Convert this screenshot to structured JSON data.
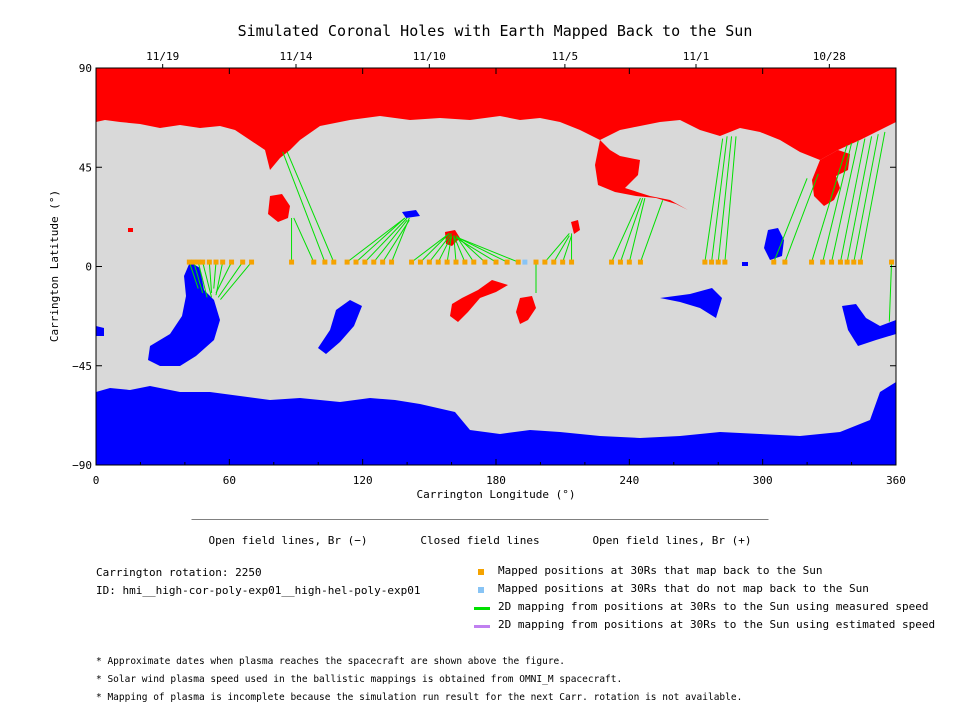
{
  "title": "Simulated Coronal Holes with Earth Mapped Back to the Sun",
  "map": {
    "x_label": "Carrington Longitude (°)",
    "y_label": "Carrington Latitude (°)",
    "x_ticks": [
      "0",
      "60",
      "120",
      "180",
      "240",
      "300",
      "360"
    ],
    "y_ticks": [
      "90",
      "45",
      "0",
      "−45",
      "−90"
    ],
    "x_range": [
      0,
      360
    ],
    "y_range": [
      -90,
      90
    ],
    "top_dates": [
      {
        "label": "11/19",
        "lon": 30
      },
      {
        "label": "11/14",
        "lon": 90
      },
      {
        "label": "11/10",
        "lon": 150
      },
      {
        "label": "11/5",
        "lon": 211
      },
      {
        "label": "11/1",
        "lon": 270
      },
      {
        "label": "10/28",
        "lon": 330
      }
    ],
    "colors": {
      "open_negative": "#0000ff",
      "closed": "#d9d9d9",
      "open_positive": "#ff0000",
      "mapped_yes": "#f5a300",
      "mapped_no": "#88c4f5",
      "measured_line": "#00e000",
      "estimated_line": "#c080f0"
    }
  },
  "colorbar": [
    {
      "label": "Open field lines, Br (−)",
      "color": "#0000ff"
    },
    {
      "label": "Closed field lines",
      "color": "#d9d9d9"
    },
    {
      "label": "Open field lines, Br (+)",
      "color": "#ff0000"
    }
  ],
  "info": {
    "rotation": "Carrington rotation: 2250",
    "id": "ID: hmi__high-cor-poly-exp01__high-hel-poly-exp01"
  },
  "legend": [
    {
      "label": "Mapped positions at 30Rs that map back to the Sun",
      "kind": "square",
      "color": "#f5a300"
    },
    {
      "label": "Mapped positions at 30Rs that do not map back to the Sun",
      "kind": "square",
      "color": "#88c4f5"
    },
    {
      "label": "2D mapping from positions at 30Rs to the Sun using measured speed",
      "kind": "line",
      "color": "#00e000"
    },
    {
      "label": "2D mapping from positions at 30Rs to the Sun using estimated speed",
      "kind": "line",
      "color": "#c080f0"
    }
  ],
  "notes": [
    "* Approximate dates when plasma reaches the spacecraft are shown above the figure.",
    "* Solar wind plasma speed used in the ballistic mappings is obtained from OMNI_M spacecraft.",
    "* Mapping of plasma is incomplete because the simulation run result for the next Carr. rotation is not available."
  ],
  "mapping_points": [
    {
      "lon": 42,
      "lat": 2,
      "flon": 46,
      "flat": -10,
      "maps": true
    },
    {
      "lon": 44,
      "lat": 2,
      "flon": 48,
      "flat": -12,
      "maps": true
    },
    {
      "lon": 46,
      "lat": 2,
      "flon": 50,
      "flat": -14,
      "maps": true
    },
    {
      "lon": 48,
      "lat": 2,
      "flon": 52,
      "flat": -14,
      "maps": true
    },
    {
      "lon": 51,
      "lat": 2,
      "flon": 52,
      "flat": -12,
      "maps": true
    },
    {
      "lon": 54,
      "lat": 2,
      "flon": 53,
      "flat": -10,
      "maps": true
    },
    {
      "lon": 57,
      "lat": 2,
      "flon": 54,
      "flat": -13,
      "maps": true
    },
    {
      "lon": 61,
      "lat": 2,
      "flon": 54,
      "flat": -12,
      "maps": true
    },
    {
      "lon": 66,
      "lat": 2,
      "flon": 55,
      "flat": -14,
      "maps": true
    },
    {
      "lon": 70,
      "lat": 2,
      "flon": 56,
      "flat": -15,
      "maps": true
    },
    {
      "lon": 88,
      "lat": 2,
      "flon": 88,
      "flat": 22,
      "maps": true
    },
    {
      "lon": 98,
      "lat": 2,
      "flon": 89,
      "flat": 22,
      "maps": true
    },
    {
      "lon": 103,
      "lat": 2,
      "flon": 84,
      "flat": 52,
      "maps": true
    },
    {
      "lon": 107,
      "lat": 2,
      "flon": 86,
      "flat": 52,
      "maps": true
    },
    {
      "lon": 113,
      "lat": 2,
      "flon": 139,
      "flat": 22,
      "maps": true
    },
    {
      "lon": 117,
      "lat": 2,
      "flon": 139,
      "flat": 22,
      "maps": true
    },
    {
      "lon": 121,
      "lat": 2,
      "flon": 140,
      "flat": 22,
      "maps": true
    },
    {
      "lon": 125,
      "lat": 2,
      "flon": 140,
      "flat": 21,
      "maps": true
    },
    {
      "lon": 129,
      "lat": 2,
      "flon": 141,
      "flat": 21,
      "maps": true
    },
    {
      "lon": 133,
      "lat": 2,
      "flon": 141,
      "flat": 22,
      "maps": true
    },
    {
      "lon": 142,
      "lat": 2,
      "flon": 159,
      "flat": 15,
      "maps": true
    },
    {
      "lon": 146,
      "lat": 2,
      "flon": 159,
      "flat": 15,
      "maps": true
    },
    {
      "lon": 150,
      "lat": 2,
      "flon": 160,
      "flat": 15,
      "maps": true
    },
    {
      "lon": 154,
      "lat": 2,
      "flon": 160,
      "flat": 14,
      "maps": true
    },
    {
      "lon": 158,
      "lat": 2,
      "flon": 160,
      "flat": 14,
      "maps": true
    },
    {
      "lon": 162,
      "lat": 2,
      "flon": 161,
      "flat": 14,
      "maps": true
    },
    {
      "lon": 166,
      "lat": 2,
      "flon": 161,
      "flat": 14,
      "maps": true
    },
    {
      "lon": 170,
      "lat": 2,
      "flon": 162,
      "flat": 14,
      "maps": true
    },
    {
      "lon": 175,
      "lat": 2,
      "flon": 162,
      "flat": 14,
      "maps": true
    },
    {
      "lon": 180,
      "lat": 2,
      "flon": 162,
      "flat": 13,
      "maps": true
    },
    {
      "lon": 185,
      "lat": 2,
      "flon": 163,
      "flat": 13,
      "maps": true
    },
    {
      "lon": 190,
      "lat": 2,
      "flon": 163,
      "flat": 13,
      "maps": true
    },
    {
      "lon": 193,
      "lat": 2,
      "flon": 0,
      "flat": 0,
      "maps": false
    },
    {
      "lon": 198,
      "lat": 2,
      "flon": 198,
      "flat": -12,
      "maps": true
    },
    {
      "lon": 202,
      "lat": 2,
      "flon": 213,
      "flat": 15,
      "maps": true
    },
    {
      "lon": 206,
      "lat": 2,
      "flon": 213,
      "flat": 14,
      "maps": true
    },
    {
      "lon": 210,
      "lat": 2,
      "flon": 214,
      "flat": 14,
      "maps": true
    },
    {
      "lon": 214,
      "lat": 2,
      "flon": 214,
      "flat": 15,
      "maps": true
    },
    {
      "lon": 232,
      "lat": 2,
      "flon": 245,
      "flat": 31,
      "maps": true
    },
    {
      "lon": 236,
      "lat": 2,
      "flon": 246,
      "flat": 31,
      "maps": true
    },
    {
      "lon": 240,
      "lat": 2,
      "flon": 247,
      "flat": 31,
      "maps": true
    },
    {
      "lon": 245,
      "lat": 2,
      "flon": 255,
      "flat": 30,
      "maps": true
    },
    {
      "lon": 274,
      "lat": 2,
      "flon": 282,
      "flat": 58,
      "maps": true
    },
    {
      "lon": 277,
      "lat": 2,
      "flon": 284,
      "flat": 59,
      "maps": true
    },
    {
      "lon": 280,
      "lat": 2,
      "flon": 286,
      "flat": 59,
      "maps": true
    },
    {
      "lon": 283,
      "lat": 2,
      "flon": 288,
      "flat": 59,
      "maps": true
    },
    {
      "lon": 305,
      "lat": 2,
      "flon": 320,
      "flat": 40,
      "maps": true
    },
    {
      "lon": 310,
      "lat": 2,
      "flon": 325,
      "flat": 42,
      "maps": true
    },
    {
      "lon": 322,
      "lat": 2,
      "flon": 338,
      "flat": 55,
      "maps": true
    },
    {
      "lon": 327,
      "lat": 2,
      "flon": 340,
      "flat": 56,
      "maps": true
    },
    {
      "lon": 331,
      "lat": 2,
      "flon": 343,
      "flat": 57,
      "maps": true
    },
    {
      "lon": 335,
      "lat": 2,
      "flon": 346,
      "flat": 58,
      "maps": true
    },
    {
      "lon": 338,
      "lat": 2,
      "flon": 349,
      "flat": 59,
      "maps": true
    },
    {
      "lon": 341,
      "lat": 2,
      "flon": 352,
      "flat": 60,
      "maps": true
    },
    {
      "lon": 344,
      "lat": 2,
      "flon": 355,
      "flat": 61,
      "maps": true
    },
    {
      "lon": 358,
      "lat": 2,
      "flon": 357,
      "flat": -25,
      "maps": true
    }
  ]
}
